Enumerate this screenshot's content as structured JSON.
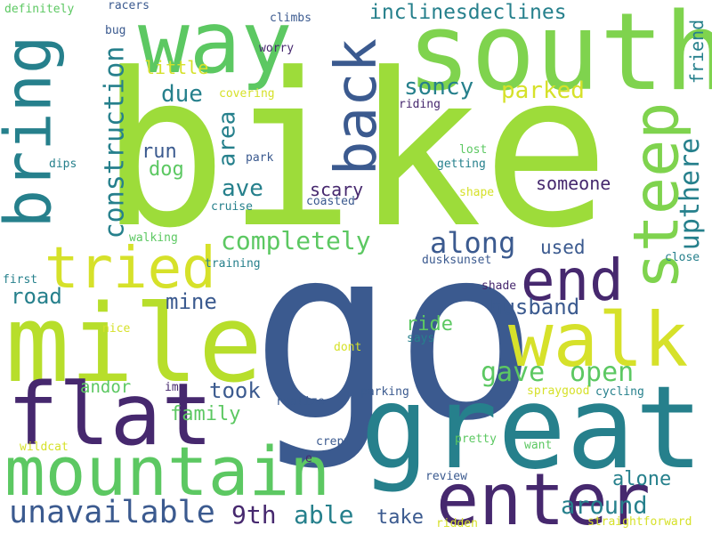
{
  "background": "#ffffff",
  "palette": {
    "lime": "#9ddc3a",
    "navy": "#3b5a8f",
    "teal": "#26808c",
    "green": "#5cc862",
    "yellow": "#d6e12a",
    "purple": "#46286e"
  },
  "words": [
    "bike",
    "go",
    "south",
    "great",
    "mile",
    "way",
    "bring",
    "steep",
    "back",
    "mountain",
    "walk",
    "flat",
    "enter",
    "tried",
    "end",
    "construction",
    "completely",
    "unavailable",
    "upthere",
    "along",
    "area",
    "gave",
    "open",
    "around",
    "inclinesdeclines",
    "parked",
    "soncy",
    "friend",
    "due",
    "ave",
    "able",
    "9th",
    "take",
    "husband",
    "ride",
    "road",
    "mine",
    "took",
    "family",
    "andor",
    "alone",
    "used",
    "someone",
    "scary",
    "dog",
    "run",
    "little",
    "definitely",
    "racers",
    "climbs",
    "worry",
    "bug",
    "covering",
    "riding",
    "lost",
    "getting",
    "shape",
    "park",
    "cruise",
    "coasted",
    "dips",
    "walking",
    "training",
    "dusksunset",
    "close",
    "first",
    "shade",
    "nice",
    "says",
    "dont",
    "im",
    "realize",
    "parking",
    "spraygood",
    "cycling",
    "wildcat",
    "crept",
    "pretty",
    "want",
    "e",
    "review",
    "straightforward",
    "ridden"
  ]
}
